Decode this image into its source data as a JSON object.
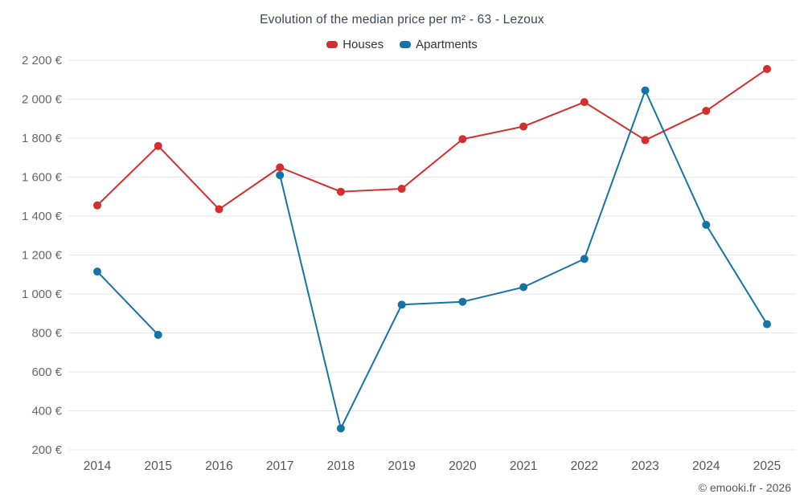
{
  "chart": {
    "title": "Evolution of the median price per m² - 63 - Lezoux",
    "copyright": "© emooki.fr - 2026"
  },
  "chart_data": {
    "type": "line",
    "x": [
      2014,
      2015,
      2016,
      2017,
      2018,
      2019,
      2020,
      2021,
      2022,
      2023,
      2024,
      2025
    ],
    "series": [
      {
        "name": "Houses",
        "color": "#d32f2f",
        "values": [
          1455,
          1760,
          1435,
          1650,
          1525,
          1540,
          1795,
          1860,
          1985,
          1790,
          1940,
          2155
        ]
      },
      {
        "name": "Apartments",
        "color": "#1573a5",
        "values": [
          1115,
          790,
          null,
          1610,
          310,
          945,
          960,
          1035,
          1180,
          2045,
          1355,
          845
        ]
      }
    ],
    "ylim": [
      200,
      2200
    ],
    "ytick_step": 200,
    "ylabel_suffix": " €",
    "grid": true,
    "legend_position": "top",
    "gridline_color": "#e6e6e6",
    "axis_label_color": "#666666"
  }
}
